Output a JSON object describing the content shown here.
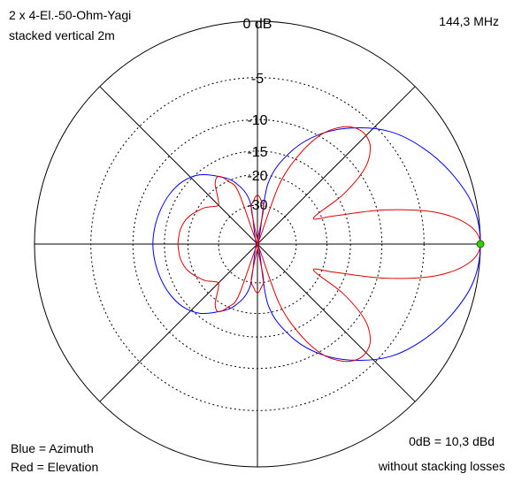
{
  "header": {
    "title_line1": "2 x 4-El.-50-Ohm-Yagi",
    "title_line2": "stacked vertical 2m",
    "frequency": "144,3 MHz"
  },
  "legend": {
    "azimuth": "Blue = Azimuth",
    "elevation": "Red = Elevation"
  },
  "notes": {
    "reference": "0dB = 10,3 dBd",
    "losses": "without stacking losses"
  },
  "colors": {
    "azimuth": "#0000ff",
    "elevation": "#e00000",
    "grid": "#000000",
    "marker": "#33cc00"
  },
  "chart_data": {
    "type": "polar",
    "title": "2 x 4-El.-50-Ohm-Yagi stacked vertical 2m",
    "ring_labels_db": [
      "0 dB",
      "-5",
      "-10",
      "-15",
      "-20",
      "-30"
    ],
    "series": [
      {
        "name": "Azimuth",
        "color": "#0000ff",
        "angles_deg": [
          0,
          10,
          20,
          30,
          40,
          50,
          60,
          70,
          80,
          90,
          100,
          110,
          120,
          130,
          140,
          150,
          160,
          170,
          180,
          190,
          200,
          210,
          220,
          230,
          240,
          250,
          260,
          270,
          280,
          290,
          300,
          310,
          320,
          330,
          340,
          350
        ],
        "gain_db": [
          0,
          -0.3,
          -1.3,
          -2.6,
          -4.2,
          -6.6,
          -9.6,
          -14,
          -22,
          -40,
          -28,
          -21,
          -18,
          -15.5,
          -14.2,
          -13.6,
          -13.3,
          -13.1,
          -13,
          -13.1,
          -13.3,
          -13.6,
          -14.2,
          -15.5,
          -18,
          -21,
          -28,
          -40,
          -22,
          -14,
          -9.6,
          -6.6,
          -4.2,
          -2.6,
          -1.3,
          -0.3
        ]
      },
      {
        "name": "Elevation",
        "color": "#e00000",
        "angles_deg": [
          0,
          5,
          10,
          15,
          20,
          25,
          30,
          35,
          40,
          45,
          50,
          55,
          60,
          65,
          70,
          75,
          80,
          85,
          90,
          95,
          100,
          105,
          110,
          115,
          120,
          125,
          130,
          135,
          140,
          145,
          150,
          155,
          160,
          165,
          170,
          175,
          180,
          185,
          190,
          195,
          200,
          205,
          210,
          215,
          220,
          225,
          230,
          235,
          240,
          245,
          250,
          255,
          260,
          265,
          270,
          275,
          280,
          285,
          290,
          295,
          300,
          305,
          310,
          315,
          320,
          325,
          330,
          335,
          340,
          345,
          350,
          355
        ],
        "gain_db": [
          0,
          -0.8,
          -3.5,
          -9,
          -17,
          -22,
          -14,
          -9.2,
          -7.1,
          -6.4,
          -6.6,
          -7.7,
          -9.8,
          -14,
          -22,
          -40,
          -32,
          -28,
          -26,
          -28,
          -32,
          -40,
          -24,
          -20,
          -18,
          -19,
          -22,
          -24,
          -23,
          -21.5,
          -20.5,
          -19.5,
          -18.7,
          -18.2,
          -17.9,
          -17.8,
          -17.7,
          -17.8,
          -17.9,
          -18.2,
          -18.7,
          -19.5,
          -20.5,
          -21.5,
          -23,
          -24,
          -22,
          -19,
          -18,
          -20,
          -24,
          -40,
          -32,
          -28,
          -26,
          -28,
          -32,
          -40,
          -22,
          -14,
          -9.8,
          -7.7,
          -6.6,
          -6.4,
          -7.1,
          -9.2,
          -14,
          -22,
          -17,
          -9,
          -3.5,
          -0.8
        ]
      }
    ],
    "marker": {
      "angle_deg": 0,
      "gain_db": 0
    },
    "grid": true
  }
}
